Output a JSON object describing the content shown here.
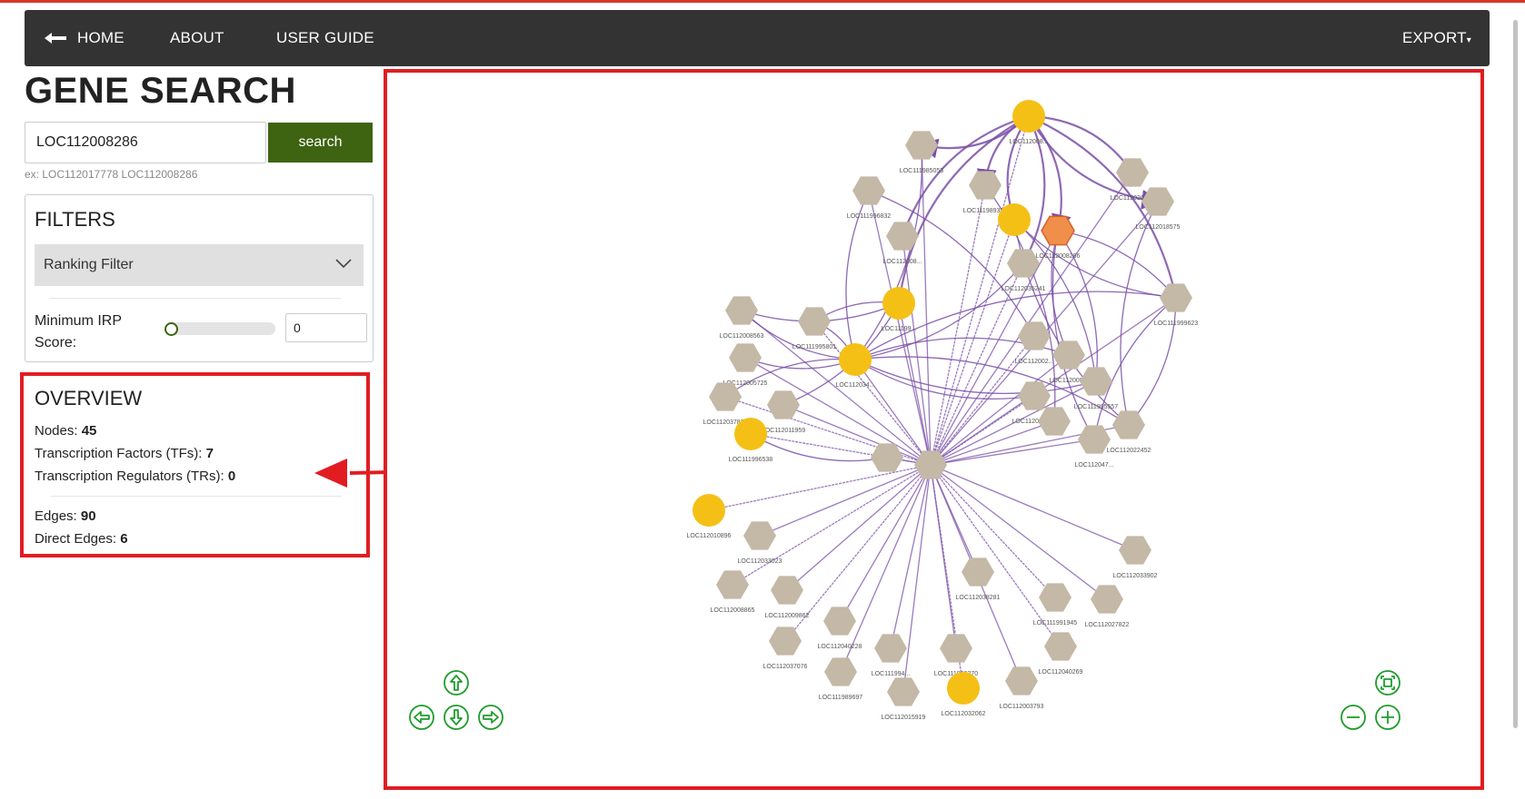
{
  "nav": {
    "home": "HOME",
    "about": "ABOUT",
    "guide": "USER GUIDE",
    "export": "EXPORT"
  },
  "search": {
    "title": "GENE SEARCH",
    "value": "LOC112008286",
    "button": "search",
    "example": "ex: LOC112017778 LOC112008286"
  },
  "filters": {
    "title": "FILTERS",
    "ranking": "Ranking Filter",
    "irp_label_1": "Minimum IRP",
    "irp_label_2": "Score:",
    "irp_value": "0",
    "irp_slider": 0
  },
  "overview": {
    "title": "OVERVIEW",
    "nodes_label": "Nodes:",
    "nodes": "45",
    "tfs_label": "Transcription Factors (TFs):",
    "tfs": "7",
    "trs_label": "Transcription Regulators (TRs):",
    "trs": "0",
    "edges_label": "Edges:",
    "edges": "90",
    "direct_label": "Direct Edges:",
    "direct": "6"
  },
  "graph": {
    "colors": {
      "tf": "#f5c016",
      "gene": "#c4b8a6",
      "query": "#ef8f4a",
      "edge": "#7a4fa8",
      "highlight": "#e11d22",
      "control": "#1f9c2c"
    },
    "node_labels": [
      "LOC112008...",
      "LOC111985053",
      "LOC111996832",
      "LOC111989384",
      "LOC112026133",
      "LOC112018575",
      "LOC112008286",
      "LOC112008...",
      "LOC11199...",
      "LOC112035241",
      "LOC112008563",
      "LOC111995801",
      "LOC112002...",
      "LOC111999623",
      "LOC112005725",
      "LOC112034...",
      "LOC112008...",
      "LOC112011756",
      "LOC112037873",
      "LOC112011959",
      "LOC111995557",
      "LOC112005334",
      "LOC112022452",
      "LOC111996538",
      "LOC112047...",
      "LOC112008671",
      "LOC112010896",
      "LOC112033023",
      "LOC112033902",
      "LOC112008865",
      "LOC112009862",
      "LOC112038281",
      "LOC111991945",
      "LOC112027822",
      "LOC112040228",
      "LOC112037076",
      "LOC111994...",
      "LOC111999270",
      "LOC112040269",
      "LOC111989697",
      "LOC112015919",
      "LOC112032062",
      "LOC112003793"
    ],
    "controls": [
      "pan-up",
      "pan-left",
      "pan-down",
      "pan-right",
      "fit",
      "zoom-out",
      "zoom-in"
    ]
  }
}
